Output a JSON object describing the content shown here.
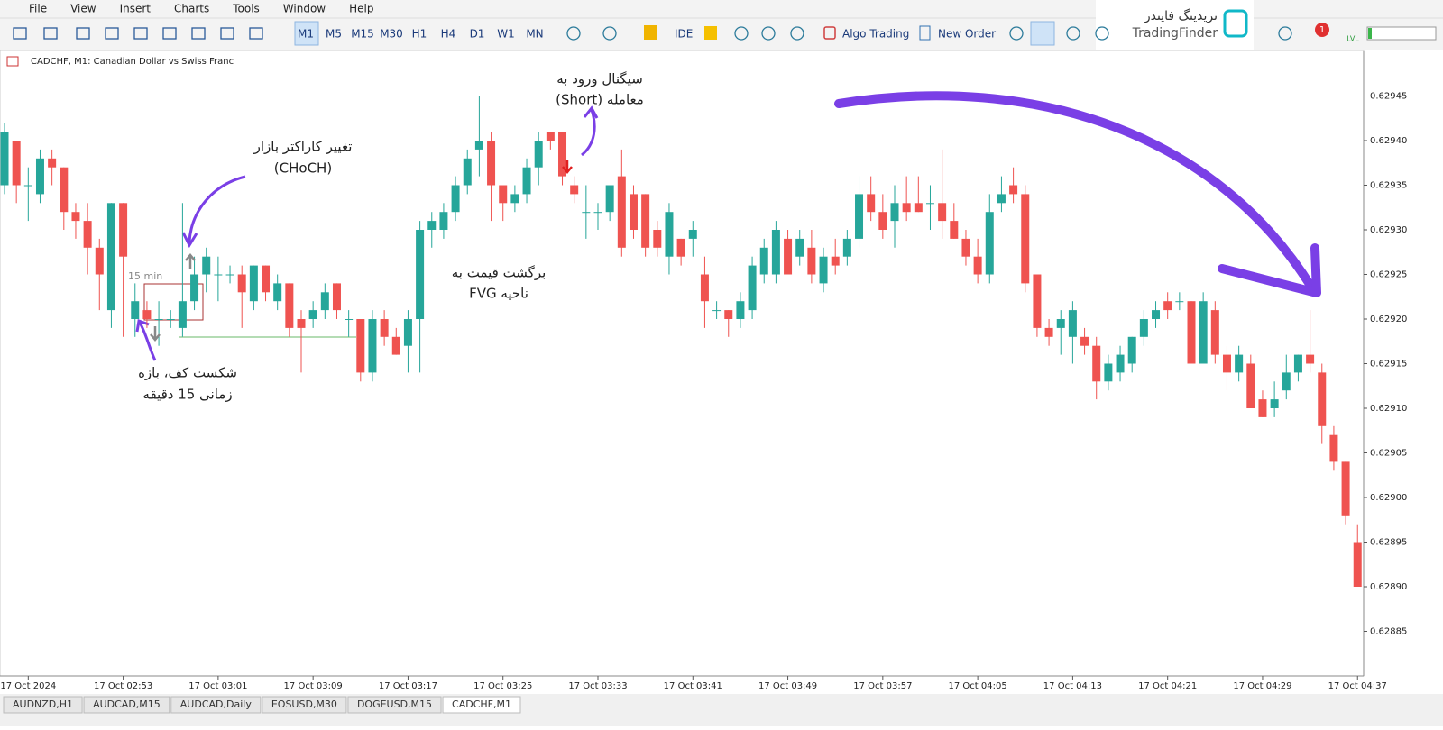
{
  "menu": [
    "File",
    "View",
    "Insert",
    "Charts",
    "Tools",
    "Window",
    "Help"
  ],
  "toolbar": {
    "timeframes": [
      "M1",
      "M5",
      "M15",
      "M30",
      "H1",
      "H4",
      "D1",
      "W1",
      "MN"
    ],
    "ide": "IDE",
    "algo_trading": "Algo Trading",
    "new_order": "New Order",
    "lvl": "LVL",
    "badge": 1
  },
  "logo": {
    "fa": "تریدینگ فایندر",
    "en": "TradingFinder"
  },
  "tabs": [
    "AUDNZD,H1",
    "AUDCAD,M15",
    "AUDCAD,Daily",
    "EOSUSD,M30",
    "DOGEUSD,M15",
    "CADCHF,M1"
  ],
  "chart_data": {
    "type": "candlestick",
    "title": "CADCHF, M1:  Canadian Dollar vs Swiss Franc",
    "up_color": "#26a69a",
    "down_color": "#ef5350",
    "ylim": [
      0.6288,
      0.6295
    ],
    "yticks": [
      0.62945,
      {
        "value": 0.6294,
        "label": "0.62940"
      },
      0.62935,
      {
        "value": 0.6293,
        "label": "0.62930"
      },
      0.62925,
      {
        "value": 0.6292,
        "label": "0.62920"
      },
      0.62915,
      {
        "value": 0.6291,
        "label": "0.62910"
      },
      0.62905,
      {
        "value": 0.629,
        "label": "0.62900"
      },
      0.62895,
      {
        "value": 0.6289,
        "label": "0.62890"
      },
      0.62885
    ],
    "categories": [
      null,
      null,
      "17 Oct 2024",
      null,
      null,
      null,
      null,
      null,
      null,
      null,
      "17 Oct 02:53",
      null,
      null,
      null,
      null,
      null,
      null,
      null,
      "17 Oct 03:01",
      null,
      null,
      null,
      null,
      null,
      null,
      null,
      "17 Oct 03:09",
      null,
      null,
      null,
      null,
      null,
      null,
      null,
      "17 Oct 03:17",
      null,
      null,
      null,
      null,
      null,
      null,
      null,
      "17 Oct 03:25",
      null,
      null,
      null,
      null,
      null,
      null,
      null,
      "17 Oct 03:33",
      null,
      null,
      null,
      null,
      null,
      null,
      null,
      "17 Oct 03:41",
      null,
      null,
      null,
      null,
      null,
      null,
      null,
      "17 Oct 03:49",
      null,
      null,
      null,
      null,
      null,
      null,
      null,
      "17 Oct 03:57",
      null,
      null,
      null,
      null,
      null,
      null,
      null,
      "17 Oct 04:05",
      null,
      null,
      null,
      null,
      null,
      null,
      null,
      "17 Oct 04:13",
      null,
      null,
      null,
      null,
      null,
      null,
      null,
      "17 Oct 04:21",
      null,
      null,
      null,
      null,
      null,
      null,
      null,
      "17 Oct 04:29",
      null,
      null,
      null,
      null,
      null,
      null,
      null,
      "17 Oct 04:37"
    ],
    "candles": [
      [
        0.62935,
        0.62942,
        0.62934,
        0.62941
      ],
      [
        0.6294,
        0.6294,
        0.62933,
        0.62935
      ],
      [
        0.62935,
        0.62937,
        0.62931,
        0.62935
      ],
      [
        0.62934,
        0.62939,
        0.62933,
        0.62938
      ],
      [
        0.62938,
        0.62939,
        0.62935,
        0.62937
      ],
      [
        0.62937,
        0.62937,
        0.6293,
        0.62932
      ],
      [
        0.62932,
        0.62933,
        0.62929,
        0.62931
      ],
      [
        0.62931,
        0.62933,
        0.62925,
        0.62928
      ],
      [
        0.62928,
        0.62929,
        0.62921,
        0.62925
      ],
      [
        0.62921,
        0.62933,
        0.62919,
        0.62933
      ],
      [
        0.62933,
        0.62933,
        0.62918,
        0.62927
      ],
      [
        0.6292,
        0.62924,
        0.62918,
        0.62922
      ],
      [
        0.62921,
        0.62922,
        0.62919,
        0.6292
      ],
      [
        0.6292,
        0.62922,
        0.62917,
        0.6292
      ],
      [
        0.6292,
        0.62921,
        0.62919,
        0.6292
      ],
      [
        0.62919,
        0.62933,
        0.62918,
        0.62922
      ],
      [
        0.62922,
        0.62927,
        0.62921,
        0.62925
      ],
      [
        0.62925,
        0.62928,
        0.62923,
        0.62927
      ],
      [
        0.62925,
        0.62927,
        0.62922,
        0.62925
      ],
      [
        0.62925,
        0.62926,
        0.62924,
        0.62925
      ],
      [
        0.62925,
        0.62926,
        0.62919,
        0.62923
      ],
      [
        0.62922,
        0.62926,
        0.62921,
        0.62926
      ],
      [
        0.62926,
        0.62926,
        0.62922,
        0.62923
      ],
      [
        0.62922,
        0.62925,
        0.62921,
        0.62924
      ],
      [
        0.62924,
        0.62924,
        0.62918,
        0.62919
      ],
      [
        0.6292,
        0.62921,
        0.62914,
        0.62919
      ],
      [
        0.6292,
        0.62922,
        0.62919,
        0.62921
      ],
      [
        0.62921,
        0.62924,
        0.6292,
        0.62923
      ],
      [
        0.62924,
        0.62924,
        0.6292,
        0.62921
      ],
      [
        0.6292,
        0.62921,
        0.62918,
        0.6292
      ],
      [
        0.6292,
        0.6292,
        0.62913,
        0.62914
      ],
      [
        0.62914,
        0.62921,
        0.62913,
        0.6292
      ],
      [
        0.6292,
        0.62921,
        0.62917,
        0.62918
      ],
      [
        0.62918,
        0.62919,
        0.62916,
        0.62916
      ],
      [
        0.62917,
        0.62921,
        0.62914,
        0.6292
      ],
      [
        0.6292,
        0.62931,
        0.62914,
        0.6293
      ],
      [
        0.6293,
        0.62932,
        0.62928,
        0.62931
      ],
      [
        0.6293,
        0.62933,
        0.62929,
        0.62932
      ],
      [
        0.62932,
        0.62936,
        0.62931,
        0.62935
      ],
      [
        0.62935,
        0.62939,
        0.62934,
        0.62938
      ],
      [
        0.62939,
        0.62945,
        0.62936,
        0.6294
      ],
      [
        0.6294,
        0.62941,
        0.62931,
        0.62935
      ],
      [
        0.62935,
        0.62935,
        0.62931,
        0.62933
      ],
      [
        0.62933,
        0.62935,
        0.62932,
        0.62934
      ],
      [
        0.62934,
        0.62938,
        0.62933,
        0.62937
      ],
      [
        0.62937,
        0.62941,
        0.62935,
        0.6294
      ],
      [
        0.62941,
        0.62941,
        0.62939,
        0.6294
      ],
      [
        0.62941,
        0.62941,
        0.62935,
        0.62936
      ],
      [
        0.62935,
        0.62936,
        0.62933,
        0.62934
      ],
      [
        0.62932,
        0.62935,
        0.62929,
        0.62932
      ],
      [
        0.62932,
        0.62933,
        0.6293,
        0.62932
      ],
      [
        0.62932,
        0.62935,
        0.62931,
        0.62935
      ],
      [
        0.62936,
        0.62939,
        0.62927,
        0.62928
      ],
      [
        0.62934,
        0.62935,
        0.62929,
        0.6293
      ],
      [
        0.62934,
        0.62934,
        0.62927,
        0.62928
      ],
      [
        0.6293,
        0.62931,
        0.62927,
        0.62928
      ],
      [
        0.62927,
        0.62933,
        0.62925,
        0.62932
      ],
      [
        0.62929,
        0.62929,
        0.62926,
        0.62927
      ],
      [
        0.62929,
        0.62931,
        0.62927,
        0.6293
      ],
      [
        0.62925,
        0.62927,
        0.62919,
        0.62922
      ],
      [
        0.62921,
        0.62922,
        0.6292,
        0.62921
      ],
      [
        0.62921,
        0.62921,
        0.62918,
        0.6292
      ],
      [
        0.6292,
        0.62923,
        0.62919,
        0.62922
      ],
      [
        0.62921,
        0.62927,
        0.6292,
        0.62926
      ],
      [
        0.62925,
        0.62929,
        0.62924,
        0.62928
      ],
      [
        0.62925,
        0.62931,
        0.62924,
        0.6293
      ],
      [
        0.62929,
        0.6293,
        0.62925,
        0.62925
      ],
      [
        0.62927,
        0.6293,
        0.62926,
        0.62929
      ],
      [
        0.62928,
        0.6293,
        0.62924,
        0.62925
      ],
      [
        0.62924,
        0.62928,
        0.62923,
        0.62927
      ],
      [
        0.62927,
        0.62929,
        0.62925,
        0.62926
      ],
      [
        0.62927,
        0.6293,
        0.62926,
        0.62929
      ],
      [
        0.62929,
        0.62936,
        0.62928,
        0.62934
      ],
      [
        0.62934,
        0.62936,
        0.62931,
        0.62932
      ],
      [
        0.62932,
        0.62934,
        0.62929,
        0.6293
      ],
      [
        0.62931,
        0.62935,
        0.62928,
        0.62933
      ],
      [
        0.62933,
        0.62936,
        0.62931,
        0.62932
      ],
      [
        0.62933,
        0.62936,
        0.62932,
        0.62932
      ],
      [
        0.62933,
        0.62935,
        0.6293,
        0.62933
      ],
      [
        0.62933,
        0.62939,
        0.62929,
        0.62931
      ],
      [
        0.62931,
        0.62933,
        0.62929,
        0.62929
      ],
      [
        0.62929,
        0.6293,
        0.62926,
        0.62927
      ],
      [
        0.62927,
        0.62929,
        0.62924,
        0.62925
      ],
      [
        0.62925,
        0.62934,
        0.62924,
        0.62932
      ],
      [
        0.62933,
        0.62936,
        0.62932,
        0.62934
      ],
      [
        0.62935,
        0.62937,
        0.62933,
        0.62934
      ],
      [
        0.62934,
        0.62935,
        0.62923,
        0.62924
      ],
      [
        0.62925,
        0.62925,
        0.62918,
        0.62919
      ],
      [
        0.62919,
        0.6292,
        0.62917,
        0.62918
      ],
      [
        0.62919,
        0.62921,
        0.62916,
        0.6292
      ],
      [
        0.62918,
        0.62922,
        0.62915,
        0.62921
      ],
      [
        0.62918,
        0.62919,
        0.62916,
        0.62917
      ],
      [
        0.62917,
        0.62918,
        0.62911,
        0.62913
      ],
      [
        0.62913,
        0.62916,
        0.62912,
        0.62915
      ],
      [
        0.62914,
        0.62917,
        0.62913,
        0.62916
      ],
      [
        0.62915,
        0.62918,
        0.62914,
        0.62918
      ],
      [
        0.62918,
        0.62921,
        0.62917,
        0.6292
      ],
      [
        0.6292,
        0.62922,
        0.62919,
        0.62921
      ],
      [
        0.62922,
        0.62923,
        0.6292,
        0.62921
      ],
      [
        0.62922,
        0.62923,
        0.62921,
        0.62922
      ],
      [
        0.62922,
        0.62922,
        0.62915,
        0.62915
      ],
      [
        0.62915,
        0.62923,
        0.62915,
        0.62922
      ],
      [
        0.62921,
        0.62922,
        0.62915,
        0.62916
      ],
      [
        0.62916,
        0.62917,
        0.62912,
        0.62914
      ],
      [
        0.62914,
        0.62917,
        0.62913,
        0.62916
      ],
      [
        0.62915,
        0.62916,
        0.6291,
        0.6291
      ],
      [
        0.62911,
        0.62912,
        0.62909,
        0.62909
      ],
      [
        0.6291,
        0.62913,
        0.62909,
        0.62911
      ],
      [
        0.62912,
        0.62916,
        0.62911,
        0.62914
      ],
      [
        0.62914,
        0.62916,
        0.62913,
        0.62916
      ],
      [
        0.62916,
        0.62921,
        0.62914,
        0.62915
      ],
      [
        0.62914,
        0.62915,
        0.62906,
        0.62908
      ],
      [
        0.62907,
        0.62908,
        0.62903,
        0.62904
      ],
      [
        0.62904,
        0.62904,
        0.62897,
        0.62898
      ],
      [
        0.62895,
        0.62897,
        0.6289,
        0.6289
      ]
    ],
    "box_label": "15 min",
    "annotations": [
      [
        "سیگنال ورود به",
        "معامله (Short)"
      ],
      [
        "تغییر کاراکتر بازار",
        "(CHoCH)"
      ],
      [
        "برگشت قیمت به",
        "ناحیه FVG"
      ],
      [
        "شکست کف، بازه",
        "زمانی 15 دقیقه"
      ]
    ]
  }
}
